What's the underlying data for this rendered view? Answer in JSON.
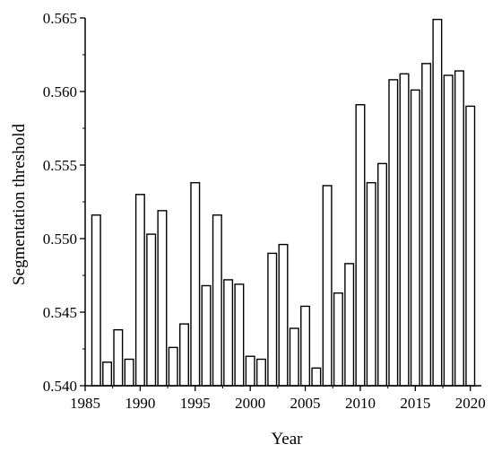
{
  "chart_data": {
    "type": "bar",
    "title": "",
    "xlabel": "Year",
    "ylabel": "Segmentation threshold",
    "x": [
      1986,
      1987,
      1988,
      1989,
      1990,
      1991,
      1992,
      1993,
      1994,
      1995,
      1996,
      1997,
      1998,
      1999,
      2000,
      2001,
      2002,
      2003,
      2004,
      2005,
      2006,
      2007,
      2008,
      2009,
      2010,
      2011,
      2012,
      2013,
      2014,
      2015,
      2016,
      2017,
      2018,
      2019,
      2020
    ],
    "values": [
      0.5516,
      0.5416,
      0.5438,
      0.5418,
      0.553,
      0.5503,
      0.5519,
      0.5426,
      0.5442,
      0.5538,
      0.5468,
      0.5516,
      0.5472,
      0.5469,
      0.542,
      0.5418,
      0.549,
      0.5496,
      0.5439,
      0.5454,
      0.5412,
      0.5536,
      0.5463,
      0.5483,
      0.5591,
      0.5538,
      0.5551,
      0.5608,
      0.5612,
      0.5601,
      0.5619,
      0.5649,
      0.5611,
      0.5614,
      0.559
    ],
    "ylim": [
      0.54,
      0.565
    ],
    "xlim": [
      1985,
      2021
    ],
    "yticks": [
      "0.540",
      "0.545",
      "0.550",
      "0.555",
      "0.560",
      "0.565"
    ],
    "xticks": [
      "1985",
      "1990",
      "1995",
      "2000",
      "2005",
      "2010",
      "2015",
      "2020"
    ],
    "grid": false,
    "colors": {
      "bar_fill": "#ffffff",
      "bar_stroke": "#000000",
      "axis": "#000000"
    }
  }
}
